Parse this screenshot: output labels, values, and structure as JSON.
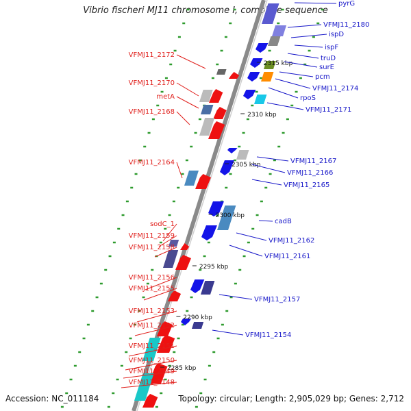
{
  "title": "Vibrio fischeri MJ11 chromosome I, complete sequence",
  "footer": {
    "accession": "Accession: NC_011184",
    "topology": "Topology: circular; Length: 2,905,029 bp; Genes: 2,712"
  },
  "scale_labels": [
    "2315 kbp",
    "2310 kbp",
    "2305 kbp",
    "2300 kbp",
    "2295 kbp",
    "2290 kbp",
    "2285 kbp"
  ],
  "left_labels": [
    "VFMJ11_2172",
    "VFMJ11_2170",
    "metA",
    "VFMJ11_2168",
    "VFMJ11_2164",
    "sodC_1",
    "VFMJ11_2159",
    "VFMJ11_2158",
    "VFMJ11_2156",
    "VFMJ11_2155",
    "VFMJ11_2153",
    "VFMJ11_2152",
    "VFMJ11_2151",
    "VFMJ11_2150",
    "VFMJ11_2149",
    "VFMJ11_2148"
  ],
  "right_labels": [
    "pyrG",
    "VFMJ11_2180",
    "ispD",
    "ispF",
    "truD",
    "surE",
    "pcm",
    "VFMJ11_2174",
    "rpoS",
    "VFMJ11_2171",
    "VFMJ11_2167",
    "VFMJ11_2166",
    "VFMJ11_2165",
    "cadB",
    "VFMJ11_2162",
    "VFMJ11_2161",
    "VFMJ11_2157",
    "VFMJ11_2154"
  ],
  "colors": {
    "left_label": "#e0201c",
    "right_label": "#1515c8",
    "forward_gene": "#ee1111",
    "reverse_gene": "#1414e8",
    "backbone": "#8a8a8a",
    "dashes": "#2e9b2e"
  }
}
